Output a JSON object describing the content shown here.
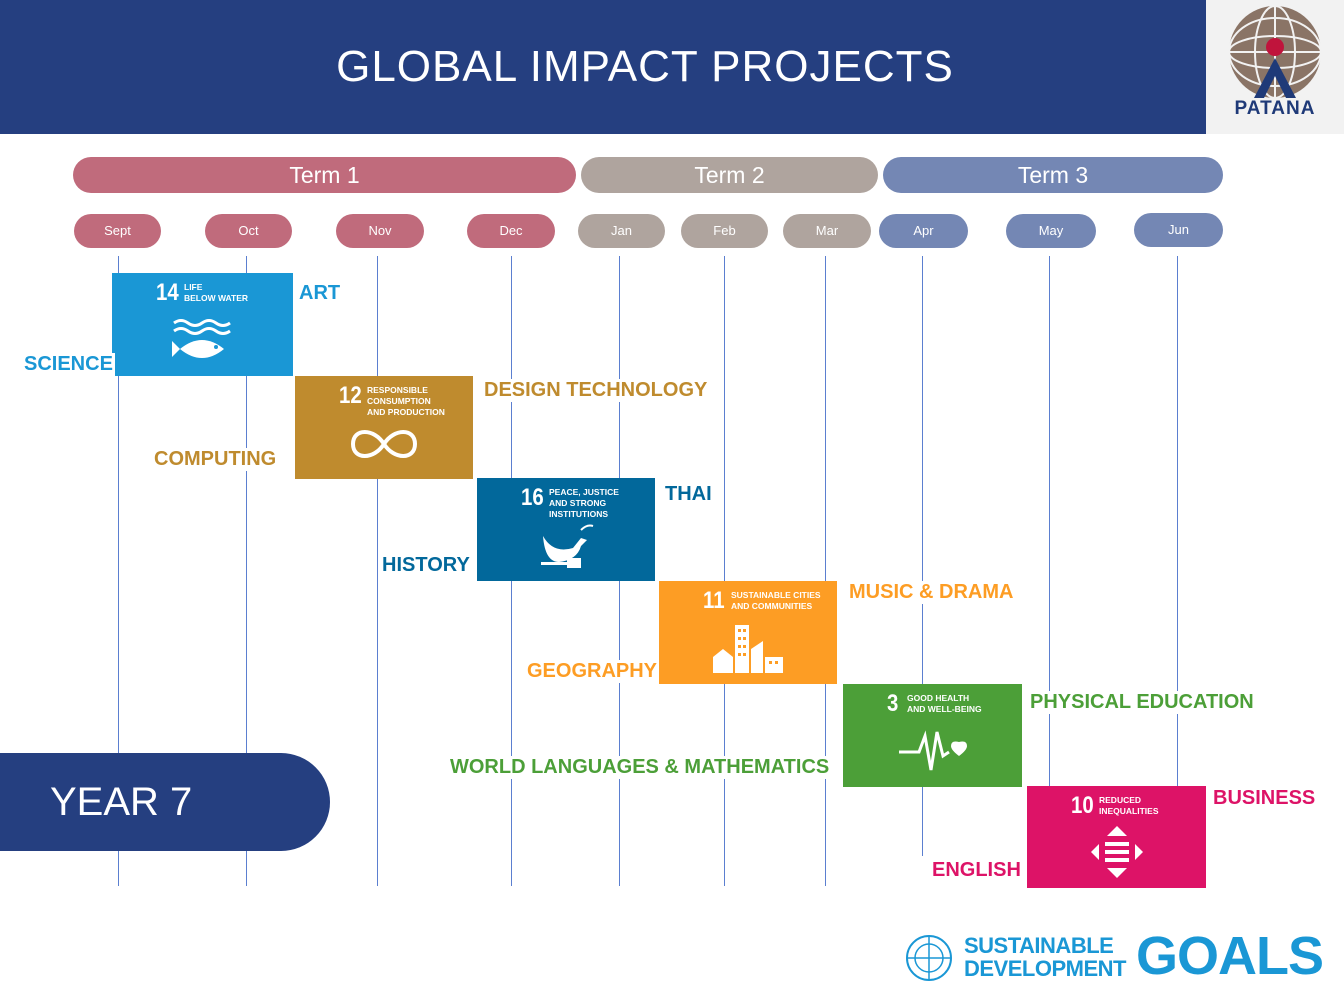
{
  "header": {
    "title": "GLOBAL IMPACT PROJECTS",
    "logo_text": "PATANA"
  },
  "terms": [
    {
      "label": "Term 1",
      "color": "#c06b7c"
    },
    {
      "label": "Term 2",
      "color": "#afa49e"
    },
    {
      "label": "Term 3",
      "color": "#7487b4"
    }
  ],
  "months": [
    "Sept",
    "Oct",
    "Nov",
    "Dec",
    "Jan",
    "Feb",
    "Mar",
    "Apr",
    "May",
    "Jun"
  ],
  "goals": [
    {
      "number": "14",
      "title": "LIFE\nBELOW WATER",
      "color": "#1a97d5",
      "icon": "fish-icon"
    },
    {
      "number": "12",
      "title": "RESPONSIBLE\nCONSUMPTION\nAND PRODUCTION",
      "color": "#bf8b2e",
      "icon": "infinity-icon"
    },
    {
      "number": "16",
      "title": "PEACE, JUSTICE\nAND STRONG\nINSTITUTIONS",
      "color": "#02689b",
      "icon": "dove-icon"
    },
    {
      "number": "11",
      "title": "SUSTAINABLE CITIES\nAND COMMUNITIES",
      "color": "#fd9d24",
      "icon": "city-icon"
    },
    {
      "number": "3",
      "title": "GOOD HEALTH\nAND WELL-BEING",
      "color": "#4c9f38",
      "icon": "heartbeat-icon"
    },
    {
      "number": "10",
      "title": "REDUCED\nINEQUALITIES",
      "color": "#dd1367",
      "icon": "arrows-icon"
    }
  ],
  "subjects": {
    "art": "ART",
    "science": "SCIENCE",
    "design_technology": "DESIGN TECHNOLOGY",
    "computing": "COMPUTING",
    "thai": "THAI",
    "history": "HISTORY",
    "music_drama": "MUSIC & DRAMA",
    "geography": "GEOGRAPHY",
    "physical_education": "PHYSICAL EDUCATION",
    "world_languages_math": "WORLD LANGUAGES & MATHEMATICS",
    "business": "BUSINESS",
    "english": "ENGLISH"
  },
  "year_label": "YEAR 7",
  "footer": {
    "sdg_line1": "SUSTAINABLE",
    "sdg_line2": "DEVELOPMENT",
    "sdg_goals": "GOALS"
  }
}
